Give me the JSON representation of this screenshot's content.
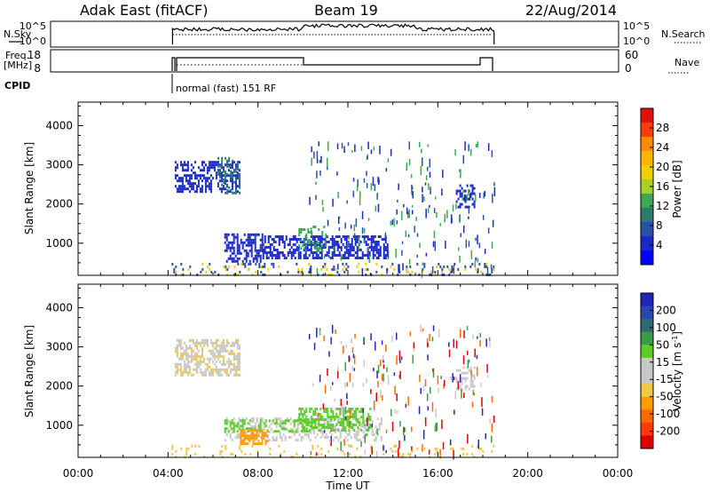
{
  "header": {
    "station": "Adak East (fitACF)",
    "beam": "Beam 19",
    "date": "22/Aug/2014"
  },
  "top_panels": {
    "nsky_label": "N.Sky",
    "nsearch_label": "N.Search",
    "noise_left_ticks": [
      "10^5",
      "10^0"
    ],
    "noise_right_ticks": [
      "10^5",
      "10^0"
    ],
    "freq_label_1": "Freq.",
    "freq_label_2": "[MHz]",
    "freq_ticks": [
      "18",
      "8"
    ],
    "nave_label": "Nave",
    "nave_ticks": [
      "60",
      "0"
    ],
    "cpid_label": "CPID",
    "cpid_text": "normal (fast) 151 RF"
  },
  "colorbars": {
    "power": {
      "label": "Power [dB]",
      "ticks": [
        "28",
        "24",
        "20",
        "16",
        "12",
        "8",
        "4"
      ],
      "colors": [
        "#e01010",
        "#ff3c0a",
        "#ff8c00",
        "#ffb400",
        "#f0d000",
        "#a8d028",
        "#3ca850",
        "#2e7b6e",
        "#2a50a8",
        "#1a28c8",
        "#0000ff"
      ]
    },
    "velocity": {
      "label": "Velocity [m s",
      "label_exp": "-1",
      "label_close": "]",
      "ticks": [
        "200",
        "100",
        "50",
        "15",
        "-15",
        "-50",
        "-100",
        "-200"
      ],
      "colors": [
        "#1e28b4",
        "#2a46a8",
        "#2e6a6e",
        "#3c9c46",
        "#5ccc28",
        "#c8c8c8",
        "#c8c8c8",
        "#f0c84a",
        "#ff9c00",
        "#ff6a00",
        "#ff3a0a",
        "#e00000"
      ]
    }
  },
  "chart_data": {
    "type": "heatmap",
    "xlabel": "Time UT",
    "ylabel": "Slant Range [km]",
    "x_ticks": [
      "00:00",
      "04:00",
      "08:00",
      "12:00",
      "16:00",
      "20:00",
      "00:00"
    ],
    "y_ticks": [
      "4000",
      "3000",
      "2000",
      "1000"
    ],
    "xlim_hours": [
      0,
      24
    ],
    "ylim_km": [
      180,
      4600
    ],
    "data_window_hours": [
      4.2,
      18.5
    ],
    "power_regions": [
      {
        "t": [
          4.3,
          7.2
        ],
        "r": [
          2300,
          3100
        ],
        "color": "#1a28c8",
        "density": 0.55
      },
      {
        "t": [
          6.2,
          7.2
        ],
        "r": [
          2300,
          3200
        ],
        "color": "#2e7b6e",
        "density": 0.35
      },
      {
        "t": [
          6.5,
          8.2
        ],
        "r": [
          550,
          1250
        ],
        "color": "#1a28c8",
        "density": 0.55
      },
      {
        "t": [
          8.2,
          13.8
        ],
        "r": [
          600,
          1200
        ],
        "color": "#1a28c8",
        "density": 0.6
      },
      {
        "t": [
          9.8,
          11.0
        ],
        "r": [
          800,
          1450
        ],
        "color": "#3ca850",
        "density": 0.35
      },
      {
        "t": [
          16.8,
          17.6
        ],
        "r": [
          1900,
          2500
        ],
        "color": "#1a28c8",
        "density": 0.5
      },
      {
        "t": [
          4.0,
          18.5
        ],
        "r": [
          180,
          500
        ],
        "color": "#2a50a8",
        "density": 0.12
      },
      {
        "t": [
          4.0,
          18.5
        ],
        "r": [
          180,
          500
        ],
        "color": "#f0d000",
        "density": 0.06
      }
    ],
    "velocity_regions": [
      {
        "t": [
          4.3,
          7.2
        ],
        "r": [
          2300,
          3200
        ],
        "color": "#c8c8c8",
        "density": 0.5
      },
      {
        "t": [
          4.3,
          7.2
        ],
        "r": [
          2300,
          3200
        ],
        "color": "#f0c84a",
        "density": 0.2
      },
      {
        "t": [
          6.5,
          13.5
        ],
        "r": [
          600,
          1200
        ],
        "color": "#c8c8c8",
        "density": 0.35
      },
      {
        "t": [
          6.5,
          10.5
        ],
        "r": [
          850,
          1150
        ],
        "color": "#5ccc28",
        "density": 0.4
      },
      {
        "t": [
          9.8,
          13.0
        ],
        "r": [
          850,
          1450
        ],
        "color": "#5ccc28",
        "density": 0.5
      },
      {
        "t": [
          7.2,
          8.4
        ],
        "r": [
          500,
          900
        ],
        "color": "#ff9c00",
        "density": 0.7
      },
      {
        "t": [
          16.8,
          17.6
        ],
        "r": [
          1900,
          2500
        ],
        "color": "#c8c8c8",
        "density": 0.45
      },
      {
        "t": [
          4.0,
          18.5
        ],
        "r": [
          180,
          500
        ],
        "color": "#f0c84a",
        "density": 0.1
      }
    ]
  }
}
